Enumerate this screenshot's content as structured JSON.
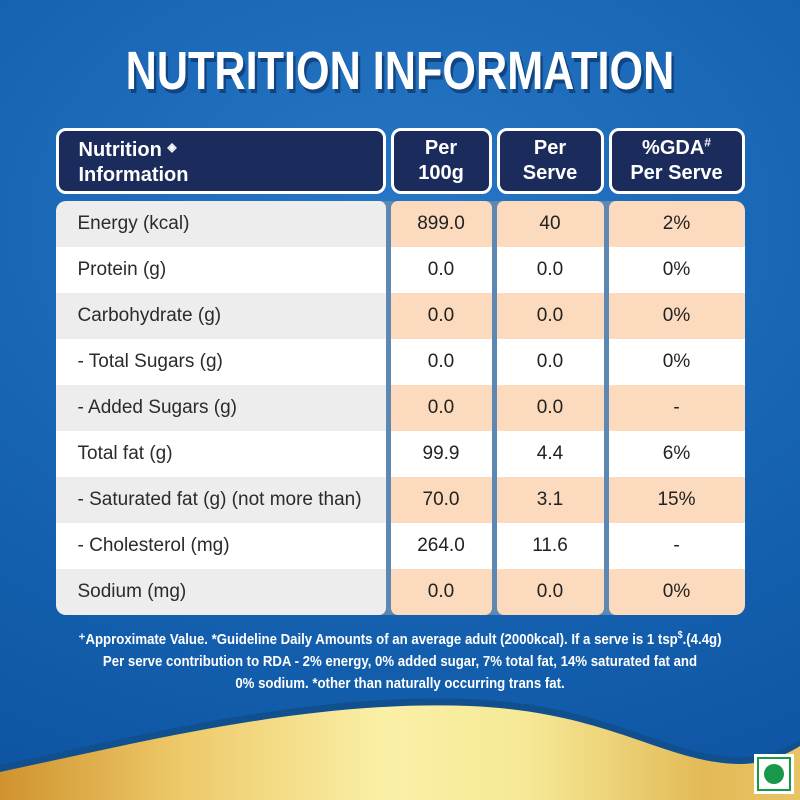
{
  "title": "NUTRITION INFORMATION",
  "table": {
    "header": {
      "col1_line1": "Nutrition",
      "col1_icon": "◈",
      "col1_line2": "Information",
      "col2_line1": "Per",
      "col2_line2": "100g",
      "col3_line1": "Per",
      "col3_line2": "Serve",
      "col4_line1": "%GDA",
      "col4_sup": "#",
      "col4_line2": "Per Serve"
    },
    "rows": [
      {
        "label": "Energy (kcal)",
        "per_100g": "899.0",
        "per_serve": "40",
        "gda_per_serve": "2%"
      },
      {
        "label": "Protein (g)",
        "per_100g": "0.0",
        "per_serve": "0.0",
        "gda_per_serve": "0%"
      },
      {
        "label": "Carbohydrate (g)",
        "per_100g": "0.0",
        "per_serve": "0.0",
        "gda_per_serve": "0%"
      },
      {
        "label": "- Total Sugars (g)",
        "per_100g": "0.0",
        "per_serve": "0.0",
        "gda_per_serve": "0%"
      },
      {
        "label": "- Added Sugars (g)",
        "per_100g": "0.0",
        "per_serve": "0.0",
        "gda_per_serve": "-"
      },
      {
        "label": "Total fat (g)",
        "per_100g": "99.9",
        "per_serve": "4.4",
        "gda_per_serve": "6%"
      },
      {
        "label": "- Saturated fat (g) (not more than)",
        "per_100g": "70.0",
        "per_serve": "3.1",
        "gda_per_serve": "15%"
      },
      {
        "label": "- Cholesterol (mg)",
        "per_100g": "264.0",
        "per_serve": "11.6",
        "gda_per_serve": "-"
      },
      {
        "label": "Sodium (mg)",
        "per_100g": "0.0",
        "per_serve": "0.0",
        "gda_per_serve": "0%"
      }
    ]
  },
  "footnote": {
    "line1_pre": "⁺Approximate Value. *Guideline Daily Amounts of an average adult (2000kcal). If a serve is 1 tsp",
    "line1_sup": "$",
    "line1_post": ".(4.4g)",
    "line2": "Per serve contribution to RDA - 2% energy, 0% added sugar, 7% total fat, 14% saturated fat and",
    "line3": "0% sodium. *other than naturally occurring trans fat."
  },
  "colors": {
    "background_blue": "#1765b3",
    "header_navy": "#1a2b5c",
    "row_peach": "#fbdabd",
    "row_gray": "#ededee",
    "divider_steel_blue": "#5d88b2",
    "gold_light": "#faf0a6",
    "gold_dark": "#d0922e",
    "veg_green": "#17984a"
  }
}
